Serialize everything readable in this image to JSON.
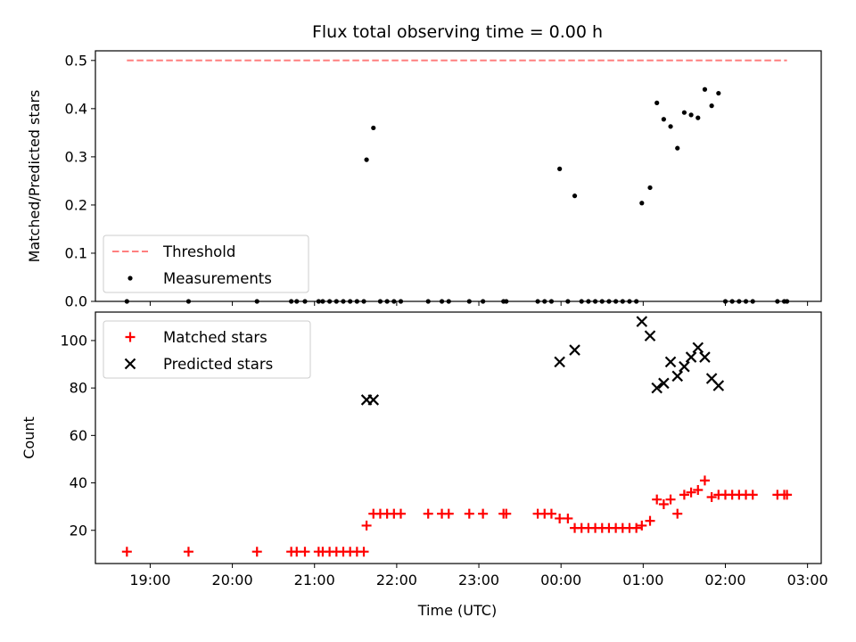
{
  "chart_data": {
    "type": "scatter",
    "title": "Flux total observing time = 0.00 h",
    "xlabel": "Time (UTC)",
    "x_ticks": [
      "19:00",
      "20:00",
      "21:00",
      "22:00",
      "23:00",
      "00:00",
      "01:00",
      "02:00",
      "03:00"
    ],
    "x_range": [
      "18:20",
      "03:10"
    ],
    "colors": {
      "threshold": "#ff7f7f",
      "measurements": "#000000",
      "matched": "#ff0000",
      "predicted": "#000000"
    },
    "panels": [
      {
        "ylabel": "Matched/Predicted stars",
        "ylim": [
          0,
          0.52
        ],
        "y_ticks": [
          "0.0",
          "0.1",
          "0.2",
          "0.3",
          "0.4",
          "0.5"
        ],
        "legend_position": "lower-left",
        "series": [
          {
            "name": "Threshold",
            "style": "dashed-line",
            "points": [
              [
                "18:43",
                0.5
              ],
              [
                "02:45",
                0.5
              ]
            ]
          },
          {
            "name": "Measurements",
            "style": "dot",
            "points": [
              [
                "18:43",
                0.0
              ],
              [
                "19:28",
                0.0
              ],
              [
                "20:18",
                0.0
              ],
              [
                "20:43",
                0.0
              ],
              [
                "20:47",
                0.0
              ],
              [
                "20:53",
                0.0
              ],
              [
                "21:03",
                0.0
              ],
              [
                "21:06",
                0.0
              ],
              [
                "21:11",
                0.0
              ],
              [
                "21:16",
                0.0
              ],
              [
                "21:21",
                0.0
              ],
              [
                "21:26",
                0.0
              ],
              [
                "21:31",
                0.0
              ],
              [
                "21:36",
                0.0
              ],
              [
                "21:38",
                0.294
              ],
              [
                "21:43",
                0.36
              ],
              [
                "21:48",
                0.0
              ],
              [
                "21:53",
                0.0
              ],
              [
                "21:58",
                0.0
              ],
              [
                "22:03",
                0.0
              ],
              [
                "22:23",
                0.0
              ],
              [
                "22:33",
                0.0
              ],
              [
                "22:38",
                0.0
              ],
              [
                "22:53",
                0.0
              ],
              [
                "23:03",
                0.0
              ],
              [
                "23:18",
                0.0
              ],
              [
                "23:20",
                0.0
              ],
              [
                "23:43",
                0.0
              ],
              [
                "23:48",
                0.0
              ],
              [
                "23:53",
                0.0
              ],
              [
                "23:59",
                0.275
              ],
              [
                "00:05",
                0.0
              ],
              [
                "00:10",
                0.219
              ],
              [
                "00:15",
                0.0
              ],
              [
                "00:20",
                0.0
              ],
              [
                "00:25",
                0.0
              ],
              [
                "00:30",
                0.0
              ],
              [
                "00:35",
                0.0
              ],
              [
                "00:40",
                0.0
              ],
              [
                "00:45",
                0.0
              ],
              [
                "00:50",
                0.0
              ],
              [
                "00:55",
                0.0
              ],
              [
                "00:59",
                0.204
              ],
              [
                "01:05",
                0.236
              ],
              [
                "01:10",
                0.412
              ],
              [
                "01:15",
                0.378
              ],
              [
                "01:20",
                0.363
              ],
              [
                "01:25",
                0.318
              ],
              [
                "01:30",
                0.392
              ],
              [
                "01:35",
                0.387
              ],
              [
                "01:40",
                0.381
              ],
              [
                "01:45",
                0.44
              ],
              [
                "01:50",
                0.406
              ],
              [
                "01:55",
                0.432
              ],
              [
                "02:00",
                0.0
              ],
              [
                "02:05",
                0.0
              ],
              [
                "02:10",
                0.0
              ],
              [
                "02:15",
                0.0
              ],
              [
                "02:20",
                0.0
              ],
              [
                "02:38",
                0.0
              ],
              [
                "02:43",
                0.0
              ],
              [
                "02:45",
                0.0
              ]
            ]
          }
        ]
      },
      {
        "ylabel": "Count",
        "ylim": [
          6,
          112
        ],
        "y_ticks": [
          "20",
          "40",
          "60",
          "80",
          "100"
        ],
        "legend_position": "upper-left",
        "series": [
          {
            "name": "Matched stars",
            "style": "plus",
            "points": [
              [
                "18:43",
                11
              ],
              [
                "19:28",
                11
              ],
              [
                "20:18",
                11
              ],
              [
                "20:43",
                11
              ],
              [
                "20:47",
                11
              ],
              [
                "20:53",
                11
              ],
              [
                "21:03",
                11
              ],
              [
                "21:06",
                11
              ],
              [
                "21:11",
                11
              ],
              [
                "21:16",
                11
              ],
              [
                "21:21",
                11
              ],
              [
                "21:26",
                11
              ],
              [
                "21:31",
                11
              ],
              [
                "21:36",
                11
              ],
              [
                "21:38",
                22
              ],
              [
                "21:43",
                27
              ],
              [
                "21:48",
                27
              ],
              [
                "21:53",
                27
              ],
              [
                "21:58",
                27
              ],
              [
                "22:03",
                27
              ],
              [
                "22:23",
                27
              ],
              [
                "22:33",
                27
              ],
              [
                "22:38",
                27
              ],
              [
                "22:53",
                27
              ],
              [
                "23:03",
                27
              ],
              [
                "23:18",
                27
              ],
              [
                "23:20",
                27
              ],
              [
                "23:43",
                27
              ],
              [
                "23:48",
                27
              ],
              [
                "23:53",
                27
              ],
              [
                "23:59",
                25
              ],
              [
                "00:05",
                25
              ],
              [
                "00:10",
                21
              ],
              [
                "00:15",
                21
              ],
              [
                "00:20",
                21
              ],
              [
                "00:25",
                21
              ],
              [
                "00:30",
                21
              ],
              [
                "00:35",
                21
              ],
              [
                "00:40",
                21
              ],
              [
                "00:45",
                21
              ],
              [
                "00:50",
                21
              ],
              [
                "00:55",
                21
              ],
              [
                "00:59",
                22
              ],
              [
                "01:05",
                24
              ],
              [
                "01:10",
                33
              ],
              [
                "01:15",
                31
              ],
              [
                "01:20",
                33
              ],
              [
                "01:25",
                27
              ],
              [
                "01:30",
                35
              ],
              [
                "01:35",
                36
              ],
              [
                "01:40",
                37
              ],
              [
                "01:45",
                41
              ],
              [
                "01:50",
                34
              ],
              [
                "01:55",
                35
              ],
              [
                "02:00",
                35
              ],
              [
                "02:05",
                35
              ],
              [
                "02:10",
                35
              ],
              [
                "02:15",
                35
              ],
              [
                "02:20",
                35
              ],
              [
                "02:38",
                35
              ],
              [
                "02:43",
                35
              ],
              [
                "02:45",
                35
              ]
            ]
          },
          {
            "name": "Predicted stars",
            "style": "x",
            "points": [
              [
                "21:38",
                75
              ],
              [
                "21:43",
                75
              ],
              [
                "23:59",
                91
              ],
              [
                "00:10",
                96
              ],
              [
                "00:59",
                108
              ],
              [
                "01:05",
                102
              ],
              [
                "01:10",
                80
              ],
              [
                "01:15",
                82
              ],
              [
                "01:20",
                91
              ],
              [
                "01:25",
                85
              ],
              [
                "01:30",
                89
              ],
              [
                "01:35",
                93
              ],
              [
                "01:40",
                97
              ],
              [
                "01:45",
                93
              ],
              [
                "01:50",
                84
              ],
              [
                "01:55",
                81
              ]
            ]
          }
        ]
      }
    ]
  }
}
